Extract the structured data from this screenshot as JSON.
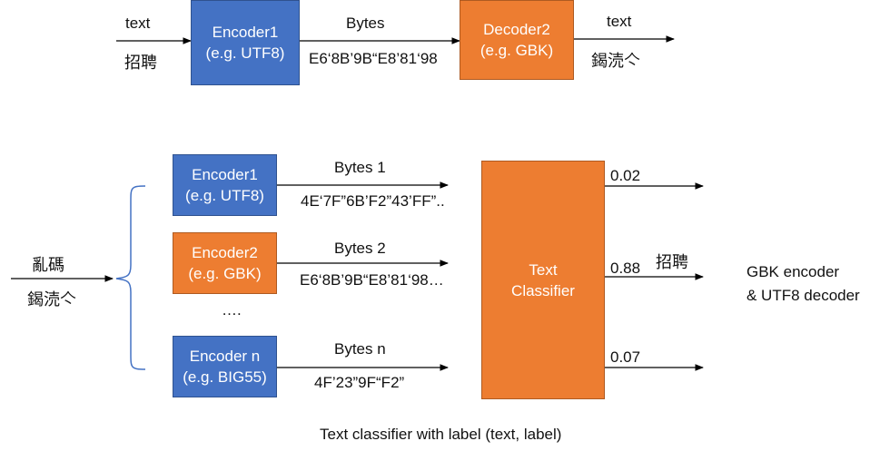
{
  "top": {
    "input_label": "text",
    "input_chars": "招聘",
    "encoder": {
      "line1": "Encoder1",
      "line2": "(e.g. UTF8)"
    },
    "bytes_label": "Bytes",
    "bytes_value": "E6‘8B’9B“E8’81‘98",
    "decoder": {
      "line1": "Decoder2",
      "line2": "(e.g. GBK)"
    },
    "output_label": "text",
    "output_chars": "鍻涜亽"
  },
  "bottom": {
    "inputs": [
      "亂碼",
      "鍻涜亽"
    ],
    "encoders": [
      {
        "line1": "Encoder1",
        "line2": "(e.g. UTF8)",
        "bytes_label": "Bytes 1",
        "bytes_value": "4E‘7F”6B’F2”43’FF”.."
      },
      {
        "line1": "Encoder2",
        "line2": "(e.g. GBK)",
        "bytes_label": "Bytes 2",
        "bytes_value": "E6‘8B’9B“E8’81‘98…"
      },
      {
        "line1": "Encoder n",
        "line2": "(e.g. BIG55)",
        "bytes_label": "Bytes n",
        "bytes_value": "4F’23”9F“F2”"
      }
    ],
    "ellipsis": "….",
    "classifier": {
      "line1": "Text",
      "line2": "Classifier"
    },
    "scores": [
      "0.02",
      "0.88",
      "0.07"
    ],
    "predicted_text": "招聘",
    "result": {
      "line1": "GBK encoder",
      "line2": "& UTF8 decoder"
    }
  },
  "caption": "Text classifier with label (text, label)",
  "colors": {
    "blue": "#4472c4",
    "orange": "#ed7d31",
    "line": "#000000",
    "brace": "#4472c4"
  }
}
